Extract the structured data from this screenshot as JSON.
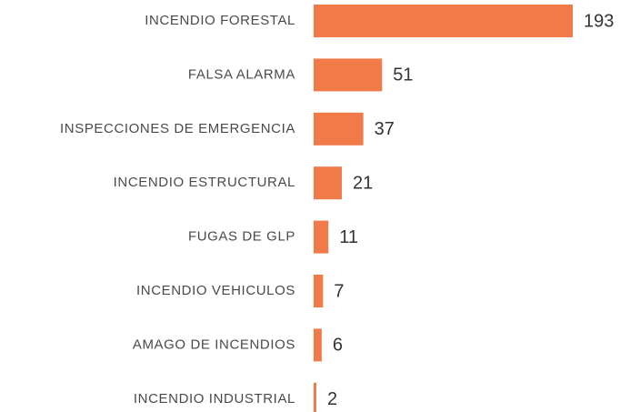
{
  "chart_data": {
    "type": "bar",
    "orientation": "horizontal",
    "categories": [
      "INCENDIO FORESTAL",
      "FALSA ALARMA",
      "INSPECCIONES DE EMERGENCIA",
      "INCENDIO ESTRUCTURAL",
      "FUGAS DE GLP",
      "INCENDIO VEHICULOS",
      "AMAGO DE INCENDIOS",
      "INCENDIO INDUSTRIAL"
    ],
    "values": [
      193,
      51,
      37,
      21,
      11,
      7,
      6,
      2
    ],
    "color": "#f07a48"
  }
}
